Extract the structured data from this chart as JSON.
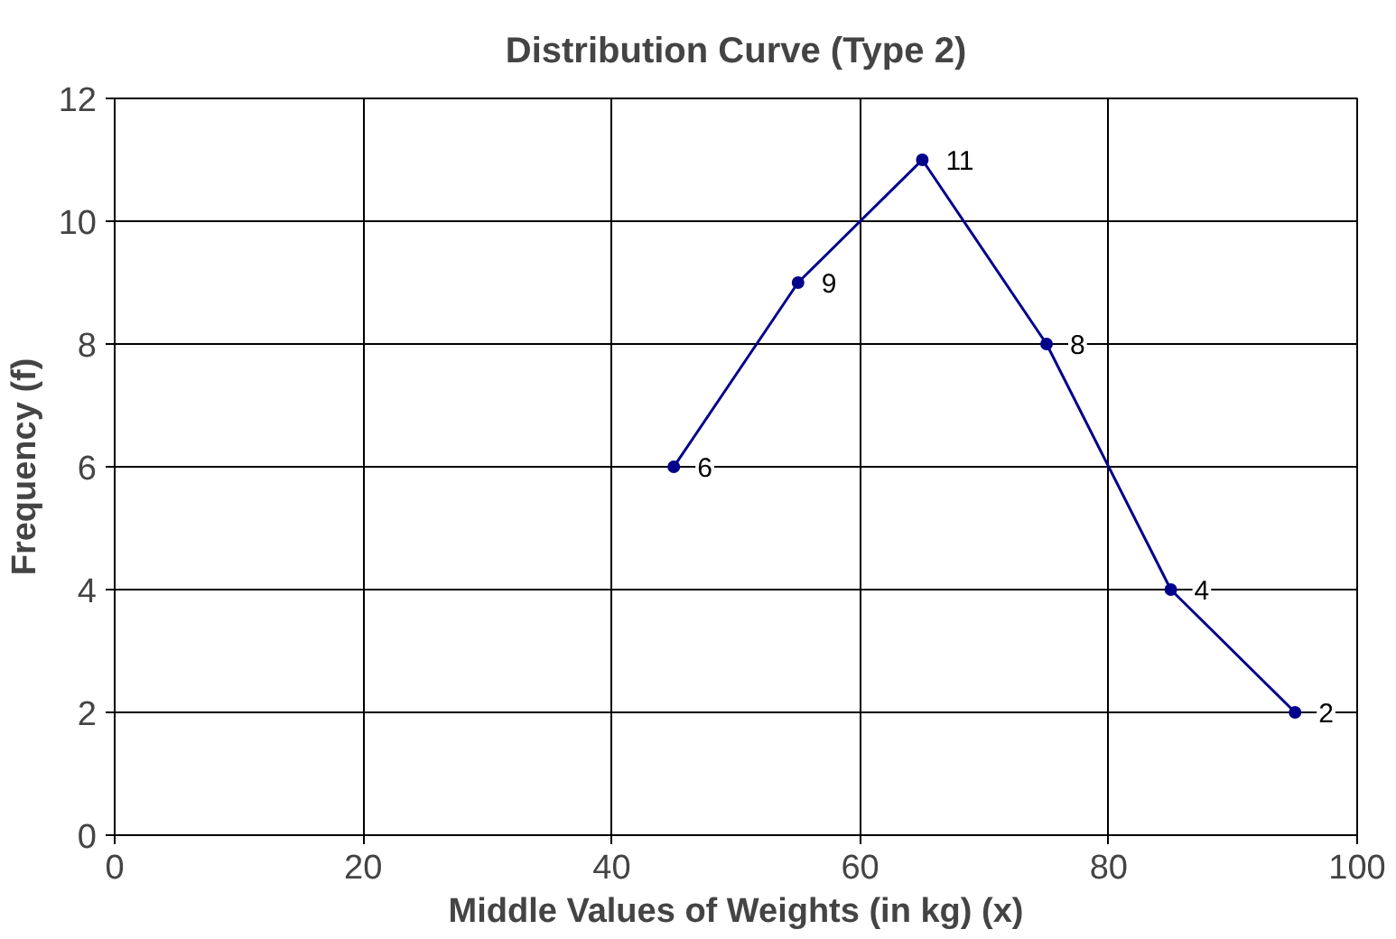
{
  "chart_data": {
    "type": "line",
    "title": "Distribution Curve (Type 2)",
    "xlabel": "Middle Values of Weights (in kg) (x)",
    "ylabel": "Frequency (f)",
    "x": [
      45,
      55,
      65,
      75,
      85,
      95
    ],
    "series": [
      {
        "color": "#00008b",
        "values": [
          6,
          9,
          11,
          8,
          4,
          2
        ]
      }
    ],
    "xlim": [
      0,
      100
    ],
    "xticks": [
      0,
      20,
      40,
      60,
      80,
      100
    ],
    "ylim": [
      0,
      12
    ],
    "yticks": [
      0,
      2,
      4,
      6,
      8,
      10,
      12
    ],
    "grid": true,
    "marker": "circle",
    "line_style": "solid",
    "data_labels": true
  }
}
